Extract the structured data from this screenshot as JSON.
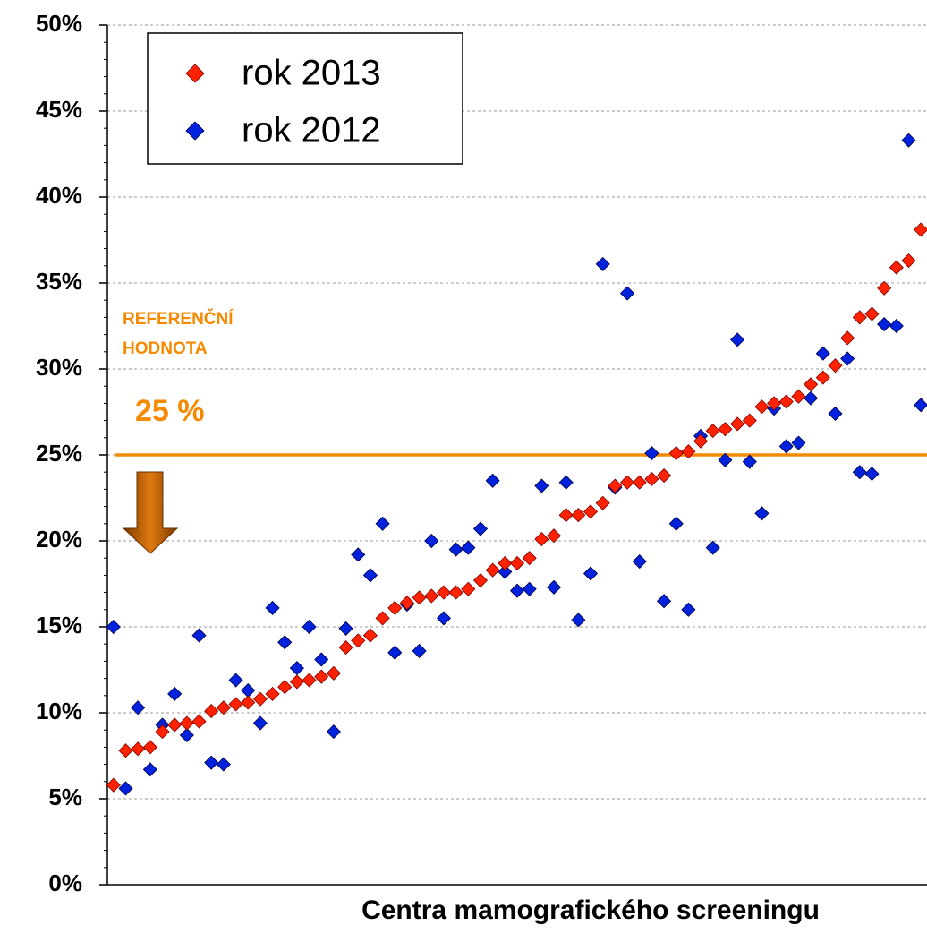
{
  "chart_data": {
    "type": "scatter",
    "x_label": "Centra mamografického screeningu",
    "categories": [
      null,
      null,
      null,
      null,
      null,
      null,
      null,
      null,
      null,
      null,
      null,
      null,
      null,
      null,
      null,
      null,
      null,
      null,
      null,
      null,
      null,
      null,
      null,
      null,
      null,
      null,
      null,
      null,
      null,
      null,
      null,
      null,
      null,
      null,
      null,
      null,
      null,
      null,
      null,
      null,
      null,
      null,
      null,
      null,
      null,
      null,
      null,
      null,
      null,
      null,
      null,
      null,
      null,
      null,
      null,
      null,
      null,
      null,
      null,
      null,
      null,
      null,
      null,
      null,
      null,
      null,
      null
    ],
    "series": [
      {
        "name": "rok 2013",
        "color": "#ff2200",
        "values": [
          5.8,
          7.8,
          7.9,
          8.0,
          8.9,
          9.3,
          9.4,
          9.5,
          10.1,
          10.3,
          10.5,
          10.6,
          10.8,
          11.1,
          11.5,
          11.8,
          11.9,
          12.1,
          12.3,
          13.8,
          14.2,
          14.5,
          15.5,
          16.1,
          16.4,
          16.7,
          16.8,
          17.0,
          17.0,
          17.2,
          17.7,
          18.3,
          18.7,
          18.7,
          19.0,
          20.1,
          20.3,
          21.5,
          21.5,
          21.7,
          22.2,
          23.2,
          23.4,
          23.4,
          23.6,
          23.8,
          25.1,
          25.2,
          25.8,
          26.4,
          26.5,
          26.8,
          27.0,
          27.8,
          28.0,
          28.1,
          28.4,
          29.1,
          29.5,
          30.2,
          31.8,
          33.0,
          33.2,
          34.7,
          35.9,
          36.3,
          38.1
        ]
      },
      {
        "name": "rok 2012",
        "color": "#0022dd",
        "values": [
          15.0,
          5.6,
          10.3,
          6.7,
          9.3,
          11.1,
          8.7,
          14.5,
          7.1,
          7.0,
          11.9,
          11.3,
          9.4,
          16.1,
          14.1,
          12.6,
          15.0,
          13.1,
          8.9,
          14.9,
          19.2,
          18.0,
          21.0,
          13.5,
          16.3,
          13.6,
          20.0,
          15.5,
          19.5,
          19.6,
          20.7,
          23.5,
          18.2,
          17.1,
          17.2,
          23.2,
          17.3,
          23.4,
          15.4,
          18.1,
          36.1,
          23.1,
          34.4,
          18.8,
          25.1,
          16.5,
          21.0,
          16.0,
          26.1,
          19.6,
          24.7,
          31.7,
          24.6,
          21.6,
          27.7,
          25.5,
          25.7,
          28.3,
          30.9,
          27.4,
          30.6,
          24.0,
          23.9,
          32.6,
          32.5,
          43.3,
          27.9
        ]
      }
    ],
    "ylim": [
      0,
      50
    ],
    "yticks": [
      {
        "value": 0,
        "label": "0%"
      },
      {
        "value": 5,
        "label": "5%"
      },
      {
        "value": 10,
        "label": "10%"
      },
      {
        "value": 15,
        "label": "15%"
      },
      {
        "value": 20,
        "label": "20%"
      },
      {
        "value": 25,
        "label": "25%"
      },
      {
        "value": 30,
        "label": "30%"
      },
      {
        "value": 35,
        "label": "35%"
      },
      {
        "value": 40,
        "label": "40%"
      },
      {
        "value": 45,
        "label": "45%"
      },
      {
        "value": 50,
        "label": "50%"
      }
    ],
    "grid": true,
    "legend": "top-left",
    "reference_line": {
      "value": 25,
      "label": [
        "REFERENČNÍ",
        "HODNOTA"
      ],
      "value_label": "25 %",
      "color": "#f58a00"
    }
  }
}
